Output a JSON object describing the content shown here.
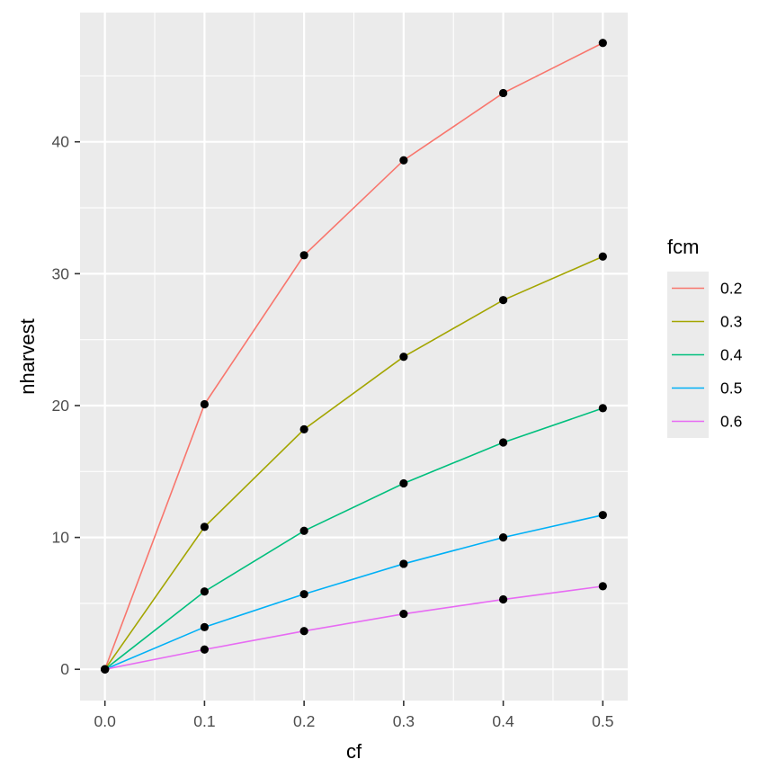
{
  "chart_data": {
    "type": "line",
    "title": "",
    "xlabel": "cf",
    "ylabel": "nharvest",
    "x": [
      0.0,
      0.1,
      0.2,
      0.3,
      0.4,
      0.5
    ],
    "xlim": [
      -0.025,
      0.525
    ],
    "ylim": [
      -2.37,
      49.8
    ],
    "x_ticks": [
      0.0,
      0.1,
      0.2,
      0.3,
      0.4,
      0.5
    ],
    "x_tick_labels": [
      "0.0",
      "0.1",
      "0.2",
      "0.3",
      "0.4",
      "0.5"
    ],
    "y_ticks": [
      0,
      10,
      20,
      30,
      40
    ],
    "y_tick_labels": [
      "0",
      "10",
      "20",
      "30",
      "40"
    ],
    "grid": true,
    "background": "#ebebeb",
    "point_color": "#000000",
    "legend": {
      "title": "fcm",
      "placement": "right"
    },
    "series": [
      {
        "name": "0.2",
        "color": "#F8766D",
        "values": [
          0,
          20.1,
          31.4,
          38.6,
          43.7,
          47.5
        ]
      },
      {
        "name": "0.3",
        "color": "#A3A500",
        "values": [
          0,
          10.8,
          18.2,
          23.7,
          28.0,
          31.3
        ]
      },
      {
        "name": "0.4",
        "color": "#00BF7D",
        "values": [
          0,
          5.9,
          10.5,
          14.1,
          17.2,
          19.8
        ]
      },
      {
        "name": "0.5",
        "color": "#00B0F6",
        "values": [
          0,
          3.2,
          5.7,
          8.0,
          10.0,
          11.7
        ]
      },
      {
        "name": "0.6",
        "color": "#E76BF3",
        "values": [
          0,
          1.5,
          2.9,
          4.2,
          5.3,
          6.3
        ]
      }
    ]
  }
}
